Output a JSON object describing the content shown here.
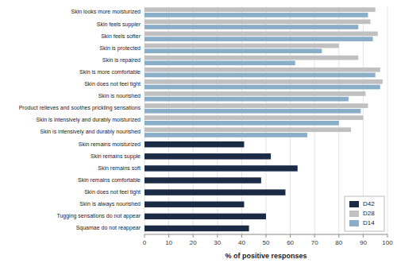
{
  "chart_data": {
    "type": "bar",
    "orientation": "horizontal",
    "categories": [
      "Skin looks more moisturized",
      "Skin feels suppler",
      "Skin feels softer",
      "Skin is protected",
      "Skin is repaired",
      "Skin is more comfortable",
      "Skin does not feel tight",
      "Skin is nourished",
      "Product relieves and soothes prickling sensations",
      "Skin is intensively and durably moisturized",
      "Skin is intensively and durably nourished",
      "Skin remains moisturized",
      "Skin remains supple",
      "Skin remains soft",
      "Skin remains comfortable",
      "Skin does not feel tight ",
      "Skin is always nourished",
      "Tugging sensations do not appear",
      "Squamae do not reappear"
    ],
    "series": [
      {
        "name": "D42",
        "color": "#1b2a45",
        "values": [
          null,
          null,
          null,
          null,
          null,
          null,
          null,
          null,
          null,
          null,
          null,
          41,
          52,
          63,
          48,
          58,
          41,
          50,
          43
        ]
      },
      {
        "name": "D28",
        "color": "#c0c0c0",
        "values": [
          95,
          93,
          96,
          80,
          88,
          97,
          98,
          91,
          92,
          90,
          85,
          null,
          null,
          null,
          null,
          null,
          null,
          null,
          null
        ]
      },
      {
        "name": "D14",
        "color": "#8aadc8",
        "values": [
          92,
          88,
          94,
          73,
          62,
          95,
          97,
          84,
          89,
          80,
          67,
          null,
          null,
          null,
          null,
          null,
          null,
          null,
          null
        ]
      }
    ],
    "xlabel": "% of positive responses",
    "xlim": [
      0,
      100
    ],
    "xticks": [
      0,
      10,
      20,
      30,
      40,
      50,
      60,
      70,
      80,
      90,
      100
    ],
    "grid": true,
    "legend": "lower right"
  }
}
